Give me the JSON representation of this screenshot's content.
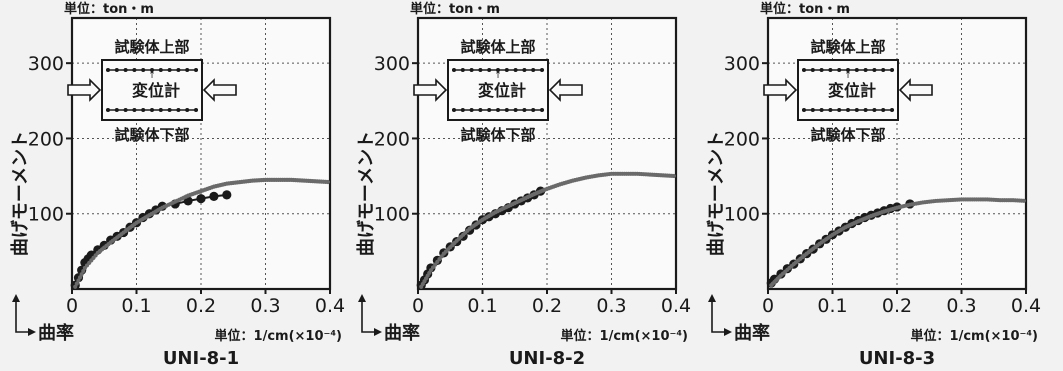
{
  "figure": {
    "unit_label": "単位：ton・m",
    "y_axis_label": "曲げモーメント",
    "x_axis_label": "曲率",
    "x_unit_label": "単位：1/cm(×10⁻⁴)",
    "diagram": {
      "top_label": "試験体上部",
      "center_label": "変位計",
      "bottom_label": "試験体下部"
    }
  },
  "chart_data": [
    {
      "type": "scatter",
      "name": "UNI-8-1",
      "xlim": [
        0,
        0.4
      ],
      "ylim": [
        0,
        360
      ],
      "x_ticks": [
        "0",
        "0.1",
        "0.2",
        "0.3",
        "0.4"
      ],
      "y_ticks": [
        "100",
        "200",
        "300"
      ],
      "grid": true,
      "series": [
        {
          "style": "large-dot-line",
          "x": [
            0.005,
            0.01,
            0.015,
            0.02,
            0.025,
            0.03,
            0.04,
            0.05,
            0.06,
            0.07,
            0.08,
            0.09,
            0.1,
            0.11,
            0.12,
            0.13,
            0.14,
            0.16,
            0.18,
            0.2,
            0.22,
            0.24
          ],
          "y": [
            5,
            15,
            25,
            35,
            40,
            45,
            52,
            58,
            65,
            70,
            75,
            82,
            88,
            95,
            100,
            105,
            110,
            113,
            117,
            120,
            123,
            125
          ]
        },
        {
          "style": "small-dot-dotted",
          "x": [
            0.005,
            0.02,
            0.04,
            0.06,
            0.08,
            0.1,
            0.12,
            0.14,
            0.16,
            0.18,
            0.2,
            0.22,
            0.24,
            0.26,
            0.28,
            0.3,
            0.32,
            0.34,
            0.36,
            0.38,
            0.4
          ],
          "y": [
            3,
            28,
            48,
            62,
            75,
            88,
            98,
            108,
            116,
            124,
            130,
            136,
            140,
            142,
            144,
            145,
            145,
            145,
            144,
            143,
            142
          ]
        }
      ]
    },
    {
      "type": "scatter",
      "name": "UNI-8-2",
      "xlim": [
        0,
        0.4
      ],
      "ylim": [
        0,
        360
      ],
      "x_ticks": [
        "0",
        "0.1",
        "0.2",
        "0.3",
        "0.4"
      ],
      "y_ticks": [
        "100",
        "200",
        "300"
      ],
      "grid": true,
      "series": [
        {
          "style": "large-dot-line",
          "x": [
            0.005,
            0.01,
            0.015,
            0.02,
            0.03,
            0.04,
            0.05,
            0.06,
            0.07,
            0.08,
            0.09,
            0.1,
            0.11,
            0.12,
            0.13,
            0.14,
            0.15,
            0.16,
            0.17,
            0.18,
            0.19
          ],
          "y": [
            5,
            12,
            20,
            28,
            38,
            48,
            56,
            63,
            70,
            78,
            85,
            92,
            96,
            100,
            104,
            108,
            113,
            117,
            121,
            125,
            130
          ]
        },
        {
          "style": "small-dot-dotted",
          "x": [
            0.005,
            0.02,
            0.04,
            0.06,
            0.08,
            0.1,
            0.12,
            0.14,
            0.16,
            0.18,
            0.2,
            0.22,
            0.24,
            0.26,
            0.28,
            0.3,
            0.32,
            0.34,
            0.36,
            0.38,
            0.4
          ],
          "y": [
            3,
            25,
            47,
            64,
            80,
            92,
            102,
            110,
            118,
            126,
            133,
            139,
            144,
            148,
            151,
            153,
            153,
            153,
            152,
            151,
            150
          ]
        }
      ]
    },
    {
      "type": "scatter",
      "name": "UNI-8-3",
      "xlim": [
        0,
        0.4
      ],
      "ylim": [
        0,
        360
      ],
      "x_ticks": [
        "0",
        "0.1",
        "0.2",
        "0.3",
        "0.4"
      ],
      "y_ticks": [
        "100",
        "200",
        "300"
      ],
      "grid": true,
      "series": [
        {
          "style": "large-dot-line",
          "x": [
            0.005,
            0.01,
            0.02,
            0.03,
            0.04,
            0.05,
            0.06,
            0.07,
            0.08,
            0.09,
            0.1,
            0.11,
            0.12,
            0.13,
            0.14,
            0.15,
            0.16,
            0.17,
            0.18,
            0.19,
            0.2,
            0.22
          ],
          "y": [
            8,
            13,
            20,
            27,
            33,
            40,
            47,
            53,
            60,
            66,
            72,
            77,
            82,
            87,
            91,
            95,
            98,
            101,
            104,
            107,
            109,
            113
          ]
        },
        {
          "style": "small-dot-dotted",
          "x": [
            0.005,
            0.02,
            0.04,
            0.06,
            0.08,
            0.1,
            0.12,
            0.14,
            0.16,
            0.18,
            0.2,
            0.22,
            0.24,
            0.26,
            0.28,
            0.3,
            0.32,
            0.34,
            0.36,
            0.38,
            0.4
          ],
          "y": [
            5,
            18,
            33,
            47,
            60,
            72,
            82,
            90,
            97,
            103,
            108,
            112,
            115,
            117,
            118,
            119,
            119,
            119,
            118,
            118,
            117
          ]
        }
      ]
    }
  ]
}
